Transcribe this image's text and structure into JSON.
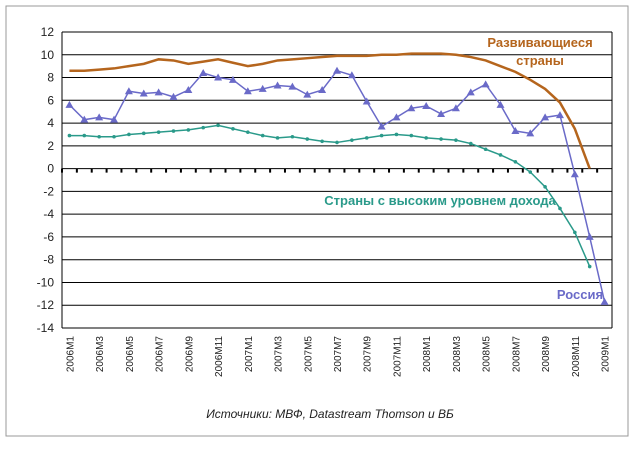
{
  "chart_data": {
    "type": "line",
    "categories": [
      "2006M1",
      null,
      "2006M3",
      null,
      "2006M5",
      null,
      "2006M7",
      null,
      "2006M9",
      null,
      "2006M11",
      null,
      "2007M1",
      null,
      "2007M3",
      null,
      "2007M5",
      null,
      "2007M7",
      null,
      "2007M9",
      null,
      "2007M11",
      null,
      "2008M1",
      null,
      "2008M3",
      null,
      "2008M5",
      null,
      "2008M7",
      null,
      "2008M9",
      null,
      "2008M11",
      null,
      "2009M1"
    ],
    "series": [
      {
        "name": "Развивающиеся страны",
        "color": "#b5651d",
        "marker": "none",
        "values": [
          8.6,
          8.6,
          8.7,
          8.8,
          9.0,
          9.2,
          9.6,
          9.5,
          9.2,
          9.4,
          9.6,
          9.3,
          9.0,
          9.2,
          9.5,
          9.6,
          9.7,
          9.8,
          9.9,
          9.9,
          9.9,
          10.0,
          10.0,
          10.1,
          10.1,
          10.1,
          10.0,
          9.8,
          9.5,
          9.0,
          8.5,
          7.8,
          7.0,
          5.8,
          3.5,
          0.0,
          null
        ]
      },
      {
        "name": "Россия",
        "color": "#6a6ac8",
        "marker": "triangle",
        "values": [
          5.6,
          4.3,
          4.5,
          4.3,
          6.8,
          6.6,
          6.7,
          6.3,
          6.9,
          8.4,
          8.0,
          7.8,
          6.8,
          7.0,
          7.3,
          7.2,
          6.5,
          6.9,
          8.6,
          8.2,
          5.9,
          3.7,
          4.5,
          5.3,
          5.5,
          4.8,
          5.3,
          6.7,
          7.4,
          5.6,
          3.3,
          3.1,
          4.5,
          4.7,
          -0.5,
          -6.0,
          -11.7
        ]
      },
      {
        "name": "Страны с высоким уровнем дохода",
        "color": "#2a9a8a",
        "marker": "dot",
        "values": [
          2.9,
          2.9,
          2.8,
          2.8,
          3.0,
          3.1,
          3.2,
          3.3,
          3.4,
          3.6,
          3.8,
          3.5,
          3.2,
          2.9,
          2.7,
          2.8,
          2.6,
          2.4,
          2.3,
          2.5,
          2.7,
          2.9,
          3.0,
          2.9,
          2.7,
          2.6,
          2.5,
          2.2,
          1.7,
          1.2,
          0.6,
          -0.3,
          -1.6,
          -3.5,
          -5.6,
          -8.6,
          null
        ]
      }
    ],
    "ylim": [
      -14,
      12
    ],
    "yticks": [
      -14,
      -12,
      -10,
      -8,
      -6,
      -4,
      -2,
      0,
      2,
      4,
      6,
      8,
      10,
      12
    ],
    "grid": true,
    "source": "Источники: МВФ, Datastream Thomson и ВБ"
  }
}
